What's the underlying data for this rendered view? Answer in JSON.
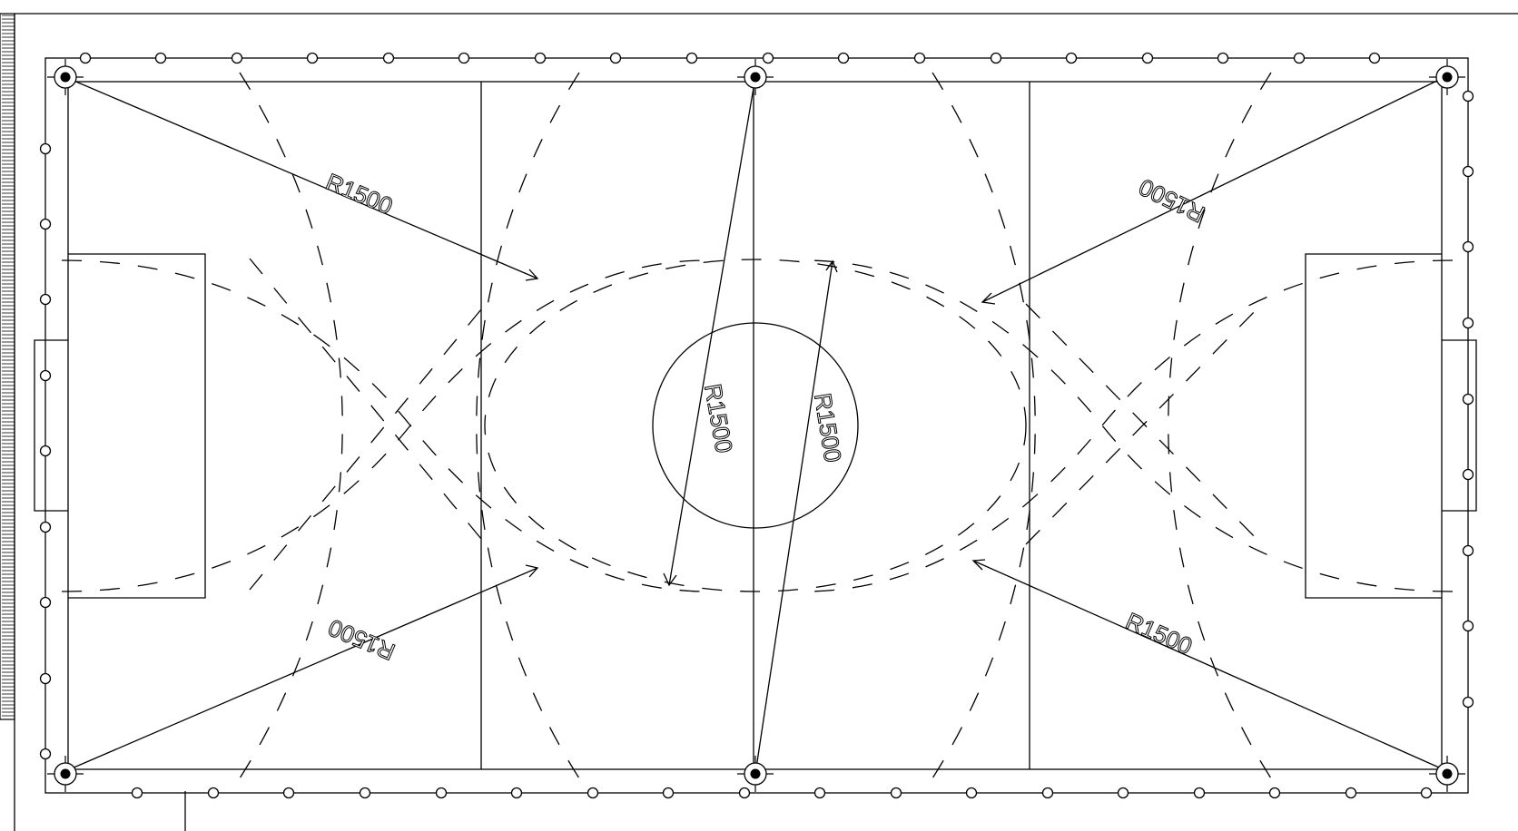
{
  "drawing": {
    "radius_labels": [
      "R1500",
      "R1500",
      "R1500",
      "R1500",
      "R1500",
      "R1500"
    ]
  }
}
